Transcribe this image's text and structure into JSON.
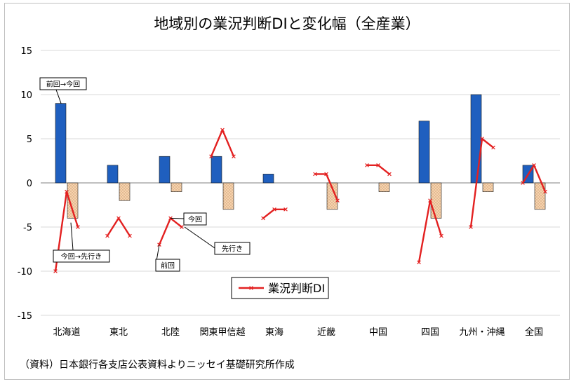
{
  "chart_data": {
    "type": "bar",
    "title": "地域別の業況判断DIと変化幅（全産業）",
    "categories": [
      "北海道",
      "東北",
      "北陸",
      "関東甲信越",
      "東海",
      "近畿",
      "中国",
      "四国",
      "九州・沖縄",
      "全国"
    ],
    "ylim": [
      -15,
      15
    ],
    "yticks": [
      -15,
      -10,
      -5,
      0,
      5,
      10,
      15
    ],
    "grid": true,
    "series": [
      {
        "values": [
          9,
          2,
          3,
          3,
          1,
          0,
          0,
          7,
          10,
          2
        ],
        "color": "#1f5fbf"
      },
      {
        "values": [
          -4,
          -2,
          -1,
          -3,
          0,
          -3,
          -1,
          -4,
          -1,
          -3
        ],
        "color": "#f4d0a8"
      },
      {
        "name": "業況判断DI",
        "color": "#e32020",
        "points": [
          [
            -10,
            -1,
            -5
          ],
          [
            -6,
            -4,
            -6
          ],
          [
            -7,
            -4,
            -5
          ],
          [
            3,
            6,
            3
          ],
          [
            -4,
            -3,
            -3
          ],
          [
            1,
            1,
            -2
          ],
          [
            2,
            2,
            1
          ],
          [
            -9,
            -2,
            -6
          ],
          [
            -5,
            5,
            4
          ],
          [
            0,
            2,
            -1
          ]
        ]
      }
    ],
    "legend": {
      "placement": "bottom-center"
    },
    "annotations": {
      "prev_to_now": "前回→今回",
      "now_to_next": "今回→先行き",
      "now": "今回",
      "next": "先行き",
      "prev": "前回"
    }
  },
  "source_note": "（資料）日本銀行各支店公表資料よりニッセイ基礎研究所作成"
}
